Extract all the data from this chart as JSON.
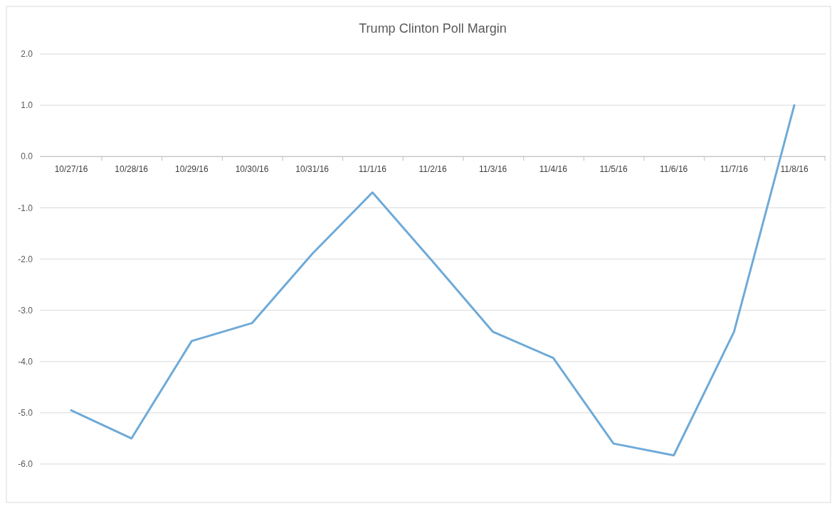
{
  "chart_data": {
    "type": "line",
    "title": "Trump Clinton Poll Margin",
    "categories": [
      "10/27/16",
      "10/28/16",
      "10/29/16",
      "10/30/16",
      "10/31/16",
      "11/1/16",
      "11/2/16",
      "11/3/16",
      "11/4/16",
      "11/5/16",
      "11/6/16",
      "11/7/16",
      "11/8/16"
    ],
    "series": [
      {
        "color": "#6eaad8",
        "values": [
          -4.95,
          -5.5,
          -3.6,
          -3.25,
          -1.9,
          -0.7,
          -2.05,
          -3.42,
          -3.93,
          -5.6,
          -5.83,
          -3.42,
          1.0
        ]
      }
    ],
    "ylim": [
      -6,
      2
    ],
    "yticks": [
      {
        "value": 2,
        "label": "2.0"
      },
      {
        "value": 1,
        "label": "1.0"
      },
      {
        "value": 0,
        "label": "0.0"
      },
      {
        "value": -1,
        "label": "-1.0"
      },
      {
        "value": -2,
        "label": "-2.0"
      },
      {
        "value": -3,
        "label": "-3.0"
      },
      {
        "value": -4,
        "label": "-4.0"
      },
      {
        "value": -5,
        "label": "-5.0"
      },
      {
        "value": -6,
        "label": "-6.0"
      }
    ],
    "grid": "y",
    "marker": "none",
    "line_style": "solid"
  }
}
